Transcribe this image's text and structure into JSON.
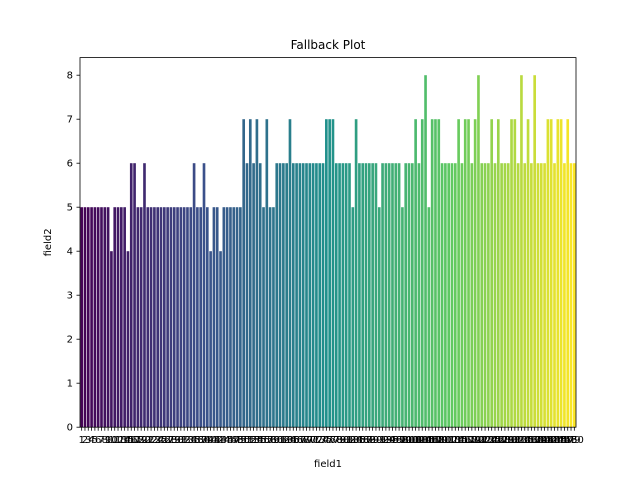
{
  "chart_data": {
    "type": "bar",
    "title": "Fallback Plot",
    "xlabel": "field1",
    "ylabel": "field2",
    "ylim": [
      0,
      8.4
    ],
    "yticks": [
      0,
      1,
      2,
      3,
      4,
      5,
      6,
      7,
      8
    ],
    "grid": false,
    "legend": "none",
    "colormap": "viridis",
    "categories": [
      1,
      2,
      3,
      4,
      5,
      6,
      7,
      8,
      9,
      10,
      11,
      12,
      13,
      14,
      15,
      16,
      17,
      18,
      19,
      20,
      21,
      22,
      23,
      24,
      25,
      26,
      27,
      28,
      29,
      30,
      31,
      32,
      33,
      34,
      35,
      36,
      37,
      38,
      39,
      40,
      41,
      42,
      43,
      44,
      45,
      46,
      47,
      48,
      49,
      50,
      51,
      52,
      53,
      54,
      55,
      56,
      57,
      58,
      59,
      60,
      61,
      62,
      63,
      64,
      65,
      66,
      67,
      68,
      69,
      70,
      71,
      72,
      73,
      74,
      75,
      76,
      77,
      78,
      79,
      80,
      81,
      82,
      83,
      84,
      85,
      86,
      87,
      88,
      89,
      90,
      91,
      92,
      93,
      94,
      95,
      96,
      97,
      98,
      99,
      100,
      101,
      102,
      103,
      104,
      105,
      106,
      107,
      108,
      109,
      110,
      111,
      112,
      113,
      114,
      115,
      116,
      117,
      118,
      119,
      120,
      121,
      122,
      123,
      124,
      125,
      126,
      127,
      128,
      129,
      130,
      131,
      132,
      133,
      134,
      135,
      136,
      137,
      138,
      139,
      140,
      141,
      142,
      143,
      144,
      145,
      146,
      147,
      148,
      149,
      150
    ],
    "values": [
      5,
      5,
      5,
      5,
      5,
      5,
      5,
      5,
      5,
      4,
      5,
      5,
      5,
      5,
      4,
      6,
      6,
      5,
      5,
      6,
      5,
      5,
      5,
      5,
      5,
      5,
      5,
      5,
      5,
      5,
      5,
      5,
      5,
      5,
      6,
      5,
      5,
      6,
      5,
      4,
      5,
      5,
      4,
      5,
      5,
      5,
      5,
      5,
      5,
      7,
      6,
      7,
      6,
      7,
      6,
      5,
      7,
      5,
      5,
      6,
      6,
      6,
      6,
      7,
      6,
      6,
      6,
      6,
      6,
      6,
      6,
      6,
      6,
      6,
      7,
      7,
      7,
      6,
      6,
      6,
      6,
      6,
      5,
      7,
      6,
      6,
      6,
      6,
      6,
      6,
      5,
      6,
      6,
      6,
      6,
      6,
      6,
      5,
      6,
      6,
      6,
      7,
      6,
      7,
      8,
      5,
      7,
      7,
      7,
      6,
      6,
      6,
      6,
      6,
      7,
      6,
      7,
      7,
      6,
      7,
      8,
      6,
      6,
      6,
      7,
      6,
      7,
      6,
      6,
      6,
      7,
      7,
      6,
      8,
      6,
      7,
      6,
      8,
      6,
      6,
      6,
      7,
      7,
      6,
      7,
      7,
      6,
      7,
      6,
      6
    ]
  }
}
